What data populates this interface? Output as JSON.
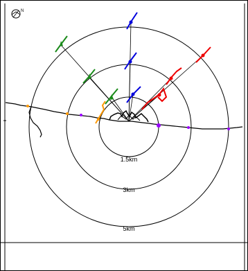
{
  "map": {
    "compass": {
      "icon": "north-compass-icon",
      "label": "N"
    },
    "rings": [
      {
        "label": "1.5km"
      },
      {
        "label": "3km"
      },
      {
        "label": "5km"
      }
    ],
    "aircraft_colors": {
      "green": "#1a8a1a",
      "blue": "#0000dd",
      "red": "#ee0000",
      "orange": "#ff9900",
      "purple": "#9900ff"
    }
  }
}
